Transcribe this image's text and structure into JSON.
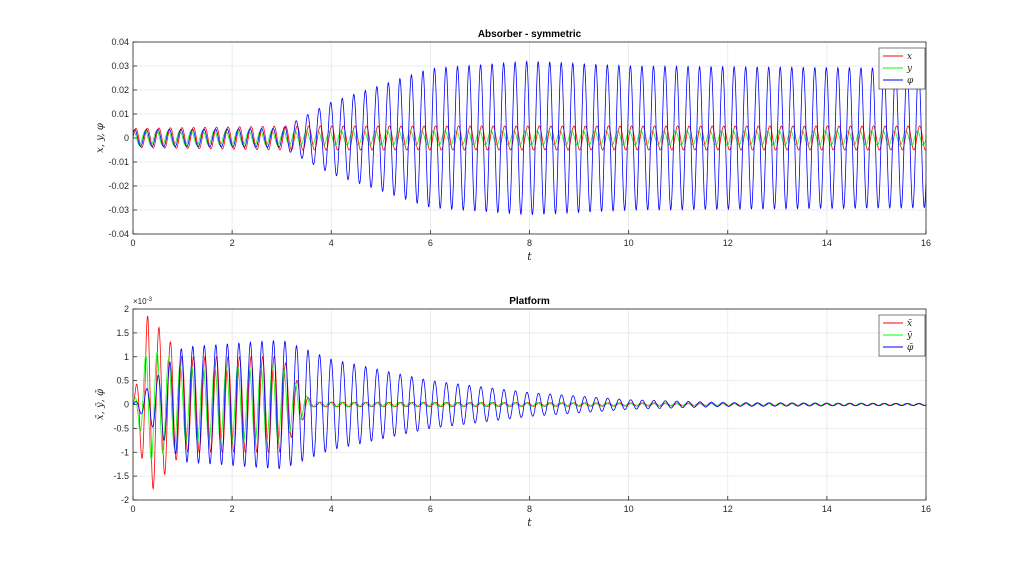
{
  "chart_data": [
    {
      "type": "line",
      "title": "Absorber - symmetric",
      "xlabel": "t",
      "ylabel": "x, y, φ",
      "xlim": [
        0,
        16
      ],
      "ylim": [
        -0.04,
        0.04
      ],
      "xticks": [
        "0",
        "2",
        "4",
        "6",
        "8",
        "10",
        "12",
        "14",
        "16"
      ],
      "yticks": [
        "-0.04",
        "-0.03",
        "-0.02",
        "-0.01",
        "0",
        "0.01",
        "0.02",
        "0.03",
        "0.04"
      ],
      "grid": true,
      "legend": "top-right",
      "series": [
        {
          "name": "x",
          "color": "#ff0000",
          "amplitude_envelope": {
            "t": [
              0,
              3,
              16
            ],
            "a": [
              0.004,
              0.005,
              0.005
            ]
          },
          "frequency": 4.3,
          "phase": 0.0
        },
        {
          "name": "y",
          "color": "#00ff00",
          "amplitude_envelope": {
            "t": [
              0,
              3,
              16
            ],
            "a": [
              0.003,
              0.003,
              0.003
            ]
          },
          "frequency": 4.3,
          "phase": 1.2
        },
        {
          "name": "φ",
          "color": "#0000ff",
          "amplitude_envelope": {
            "t": [
              0,
              3,
              4,
              6,
              8,
              10,
              16
            ],
            "a": [
              0.0035,
              0.004,
              0.015,
              0.029,
              0.032,
              0.03,
              0.029
            ]
          },
          "frequency": 4.3,
          "phase": 0.6
        }
      ]
    },
    {
      "type": "line",
      "title": "Platform",
      "xlabel": "t",
      "ylabel": "x̄, ȳ, φ̄",
      "ylabel_multiplier": "×10^-3",
      "xlim": [
        0,
        16
      ],
      "ylim": [
        -2,
        2
      ],
      "xticks": [
        "0",
        "2",
        "4",
        "6",
        "8",
        "10",
        "12",
        "14",
        "16"
      ],
      "yticks": [
        "-2",
        "-1.5",
        "-1",
        "-0.5",
        "0",
        "0.5",
        "1",
        "1.5",
        "2"
      ],
      "grid": true,
      "legend": "top-right",
      "series": [
        {
          "name": "x̄",
          "color": "#ff0000",
          "amplitude_envelope": {
            "t": [
              0,
              0.3,
              1,
              3,
              3.6,
              16
            ],
            "a": [
              0,
              1.9,
              1.0,
              1.0,
              0.05,
              0.02
            ]
          },
          "frequency": 4.3,
          "phase": 0.0
        },
        {
          "name": "ȳ",
          "color": "#00ff00",
          "amplitude_envelope": {
            "t": [
              0,
              0.3,
              1,
              3,
              3.6,
              16
            ],
            "a": [
              0,
              1.2,
              0.8,
              0.8,
              0.05,
              0.02
            ]
          },
          "frequency": 4.3,
          "phase": 1.0
        },
        {
          "name": "φ̄",
          "color": "#0000ff",
          "amplitude_envelope": {
            "t": [
              0,
              1,
              3,
              4,
              6,
              8,
              10,
              12,
              16
            ],
            "a": [
              0,
              1.2,
              1.35,
              0.95,
              0.5,
              0.25,
              0.1,
              0.04,
              0.02
            ]
          },
          "frequency": 4.3,
          "phase": 0.4
        }
      ]
    }
  ]
}
